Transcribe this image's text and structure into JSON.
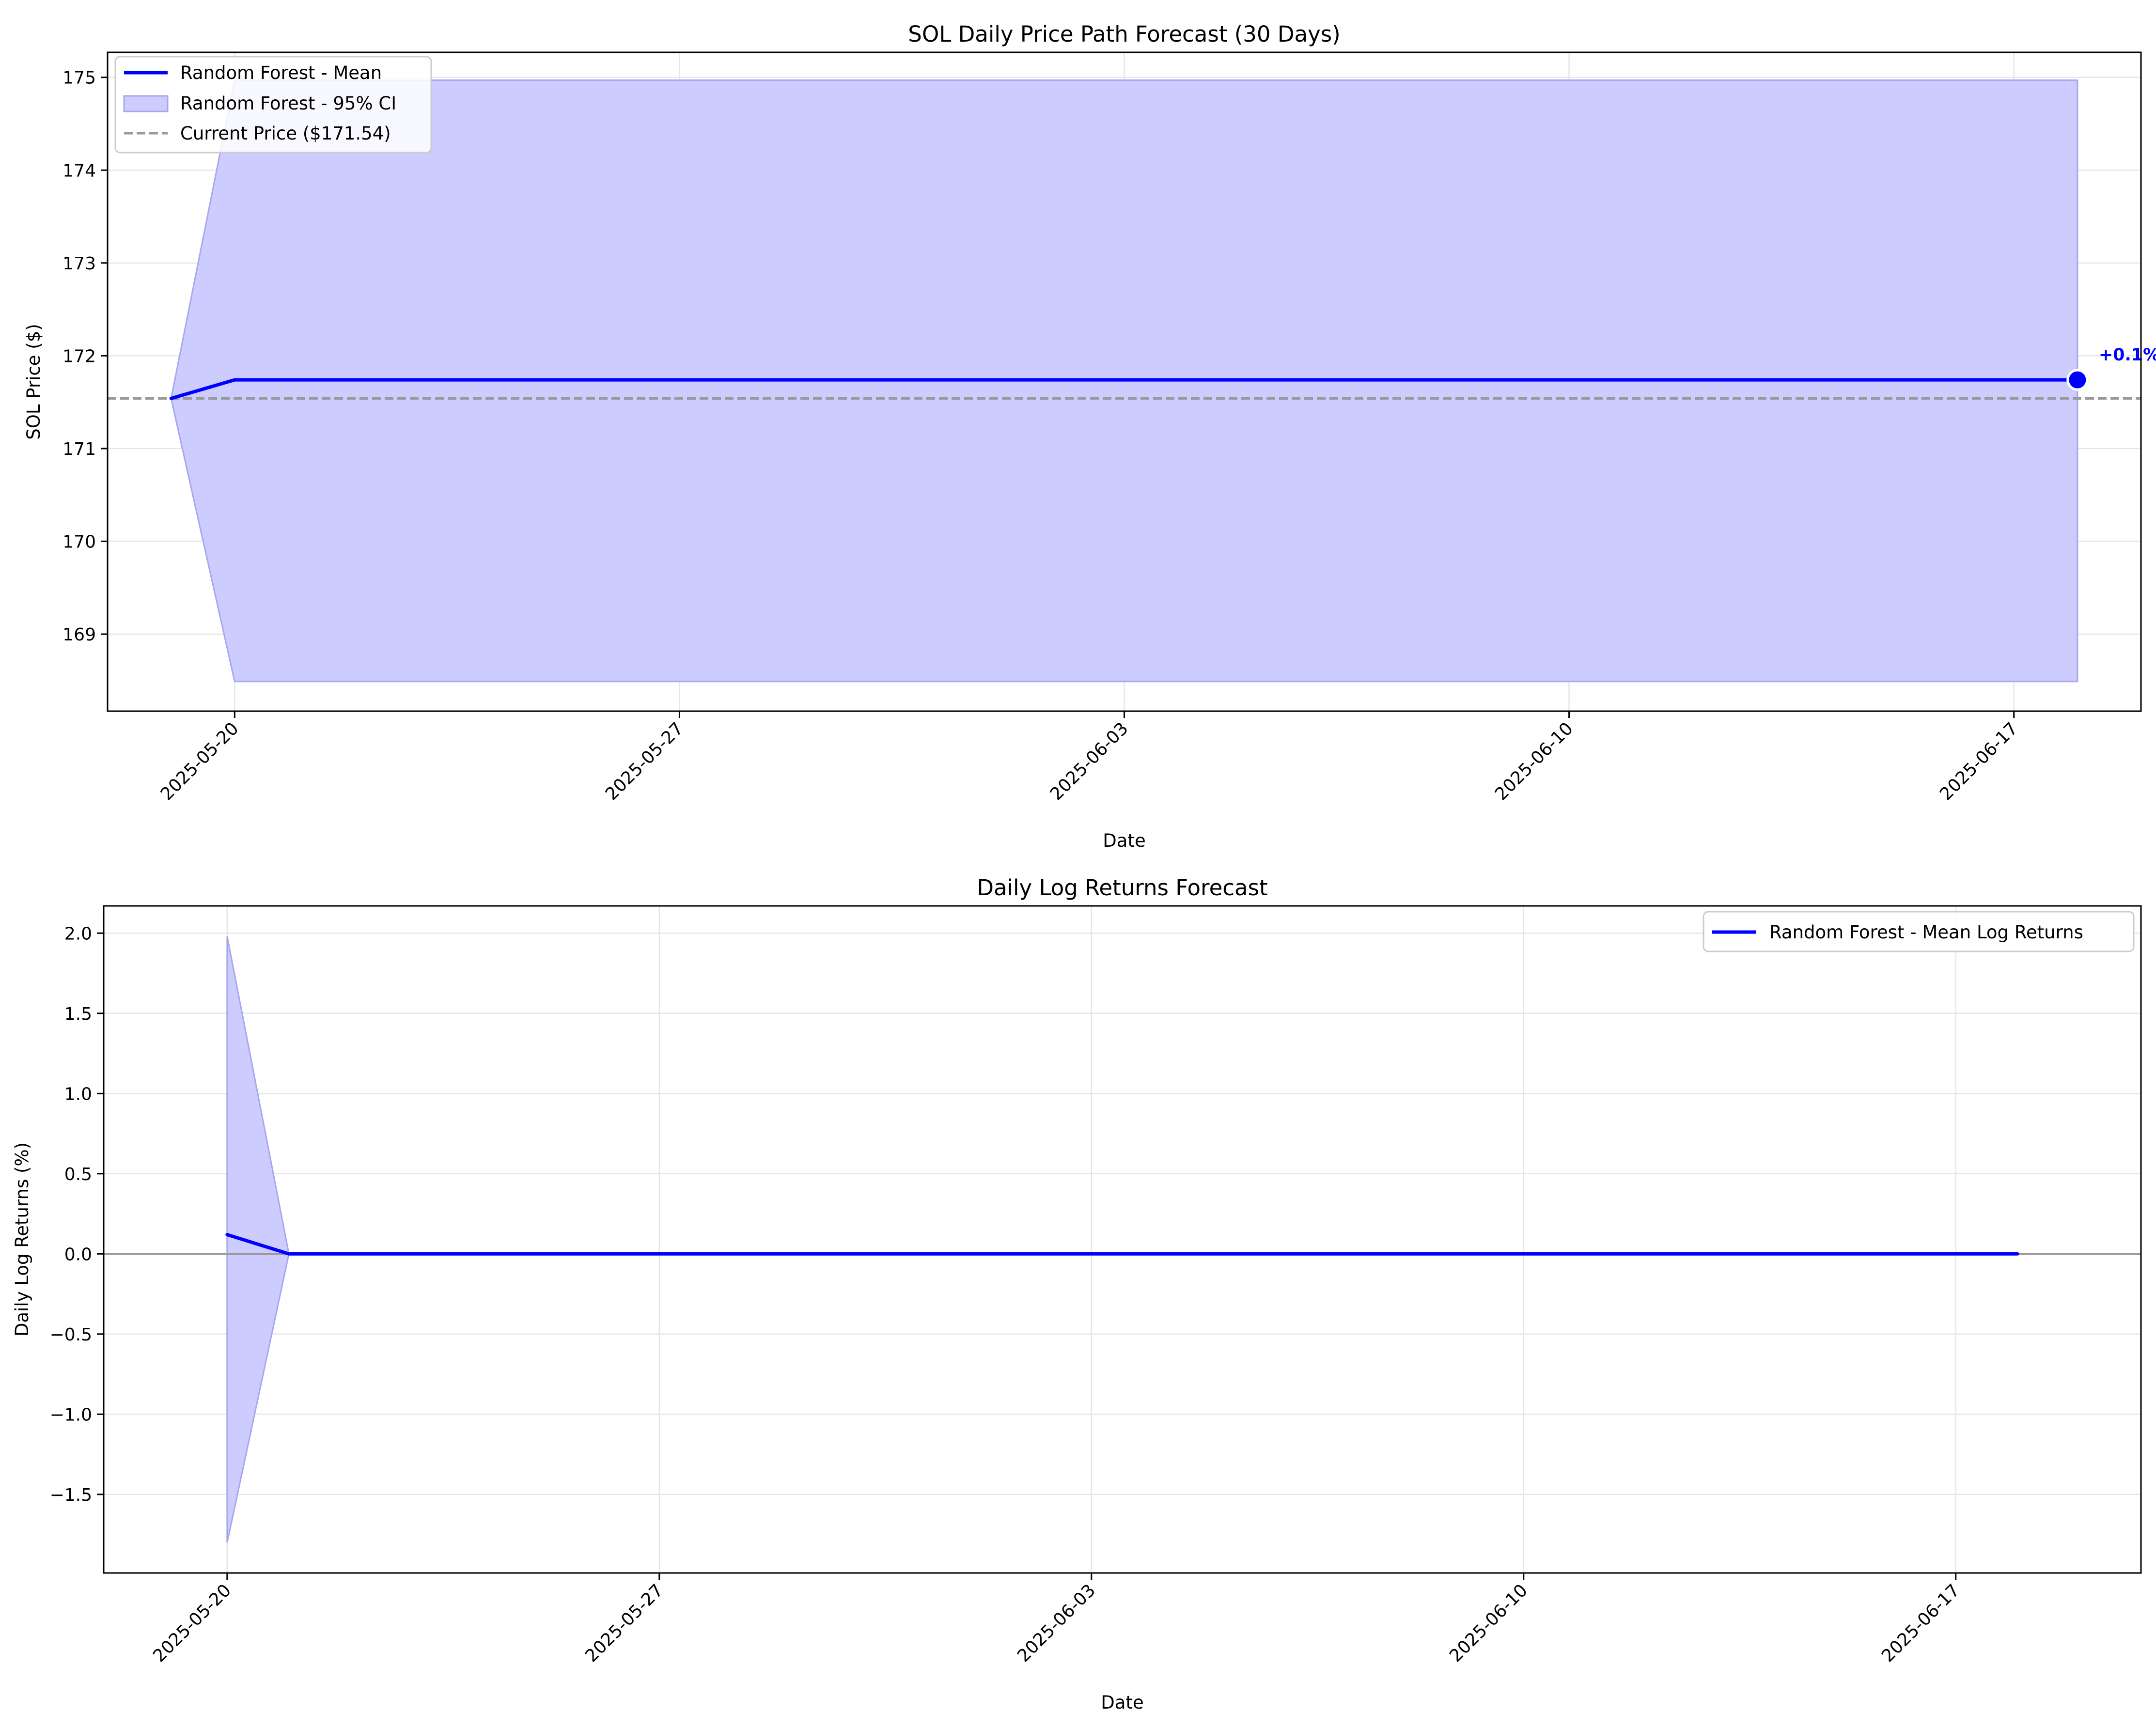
{
  "chart_data": [
    {
      "type": "line",
      "title": "SOL Daily Price Path Forecast (30 Days)",
      "xlabel": "Date",
      "ylabel": "SOL Price ($)",
      "xlim": [
        "2025-05-18",
        "2025-06-19"
      ],
      "ylim": [
        168.17,
        175.27
      ],
      "grid": true,
      "legend_position": "upper-left",
      "xticks": [
        "2025-05-20",
        "2025-05-27",
        "2025-06-03",
        "2025-06-10",
        "2025-06-17"
      ],
      "yticks": [
        169,
        170,
        171,
        172,
        173,
        174,
        175
      ],
      "colors": {
        "mean": "#0000ff",
        "band_fill": "#ccccff",
        "band_edge": "#a7a7ef",
        "reference": "#999999",
        "grid": "#e6e6e6"
      },
      "mean": {
        "name": "Random Forest - Mean",
        "x": [
          "2025-05-19",
          "2025-05-20",
          "2025-06-18"
        ],
        "y": [
          171.54,
          171.74,
          171.74
        ]
      },
      "band": {
        "name": "Random Forest - 95% CI",
        "x": [
          "2025-05-19",
          "2025-05-20",
          "2025-06-18"
        ],
        "lower": [
          171.54,
          168.49,
          168.49
        ],
        "upper": [
          171.54,
          174.97,
          174.97
        ]
      },
      "reference_line": {
        "name": "Current Price ($171.54)",
        "y": 171.54
      },
      "end_marker": {
        "x": "2025-06-18",
        "y": 171.74,
        "label": "+0.1%"
      }
    },
    {
      "type": "line",
      "title": "Daily Log Returns Forecast",
      "xlabel": "Date",
      "ylabel": "Daily Log Returns (%)",
      "xlim": [
        "2025-05-18",
        "2025-06-20"
      ],
      "ylim": [
        -1.99,
        2.17
      ],
      "grid": true,
      "legend_position": "upper-right",
      "xticks": [
        "2025-05-20",
        "2025-05-27",
        "2025-06-03",
        "2025-06-10",
        "2025-06-17"
      ],
      "yticks": [
        -1.5,
        -1.0,
        -0.5,
        0.0,
        0.5,
        1.0,
        1.5,
        2.0
      ],
      "colors": {
        "mean": "#0000ff",
        "band_fill": "#ccccff",
        "band_edge": "#a7a7ef",
        "zero_line": "#999999",
        "grid": "#e6e6e6"
      },
      "mean": {
        "name": "Random Forest - Mean Log Returns",
        "x": [
          "2025-05-20",
          "2025-05-21",
          "2025-06-18"
        ],
        "y": [
          0.12,
          0.0,
          0.0
        ]
      },
      "band": {
        "x": [
          "2025-05-20",
          "2025-05-21",
          "2025-06-18"
        ],
        "lower": [
          -1.8,
          0.0,
          0.0
        ],
        "upper": [
          1.98,
          0.0,
          0.0
        ]
      },
      "zero_line": {
        "y": 0
      }
    }
  ]
}
